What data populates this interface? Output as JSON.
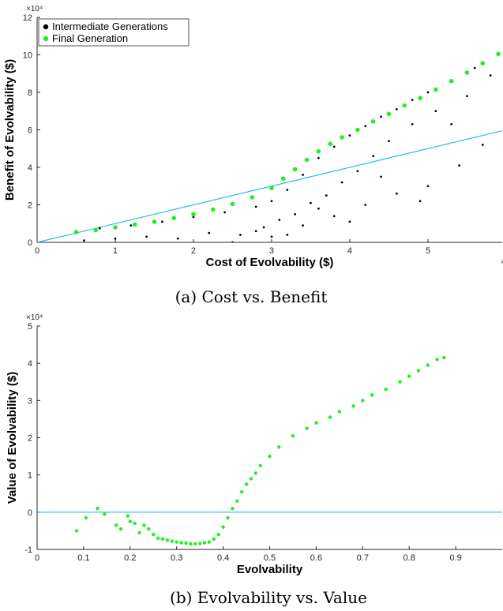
{
  "chart_data": [
    {
      "type": "scatter",
      "caption": "(a) Cost vs. Benefit",
      "xlabel": "Cost of Evolvability ($)",
      "ylabel": "Benefit of Evolvability ($)",
      "x_exponent_label": "×10",
      "y_exponent_label": "×10⁴",
      "xlim": [
        0,
        5.95
      ],
      "ylim": [
        0,
        12
      ],
      "xticks": [
        0,
        1,
        2,
        3,
        4,
        5
      ],
      "yticks": [
        0,
        2,
        4,
        6,
        8,
        10,
        12
      ],
      "legend_position": "top-left",
      "grid": false,
      "colors": {
        "intermediate": "#000000",
        "final": "#22ee22",
        "reference_line": "#22bbee"
      },
      "series": [
        {
          "name": "Intermediate Generations",
          "x": [
            0.5,
            0.8,
            1.2,
            1.6,
            2.0,
            2.4,
            2.8,
            3.0,
            3.2,
            3.4,
            3.6,
            3.8,
            4.0,
            4.2,
            4.4,
            4.6,
            4.8,
            5.0,
            5.3,
            5.6,
            5.9,
            0.6,
            1.0,
            1.4,
            1.8,
            2.2,
            2.6,
            2.9,
            3.1,
            3.3,
            3.5,
            3.7,
            3.9,
            4.1,
            4.3,
            4.5,
            4.8,
            5.1,
            5.5,
            5.8,
            2.5,
            3.0,
            3.4,
            3.8,
            4.2,
            4.6,
            5.0,
            5.4,
            5.7,
            2.8,
            3.2,
            3.6,
            4.0,
            4.4,
            4.9,
            5.3
          ],
          "y": [
            0.6,
            0.75,
            0.9,
            1.1,
            1.35,
            1.6,
            1.9,
            2.2,
            2.8,
            3.6,
            4.5,
            5.1,
            5.7,
            6.2,
            6.7,
            7.1,
            7.6,
            8.0,
            8.6,
            9.3,
            10.0,
            0.1,
            0.2,
            0.3,
            0.2,
            0.5,
            0.4,
            0.8,
            1.2,
            1.5,
            2.1,
            2.5,
            3.2,
            3.8,
            4.6,
            5.4,
            6.3,
            7.0,
            7.8,
            8.9,
            0.0,
            0.3,
            0.9,
            1.4,
            2.0,
            2.6,
            3.0,
            4.1,
            5.2,
            0.6,
            0.4,
            1.8,
            1.1,
            3.5,
            2.2,
            6.3
          ]
        },
        {
          "name": "Final Generation",
          "x": [
            0.5,
            0.75,
            1.0,
            1.25,
            1.5,
            1.75,
            2.0,
            2.25,
            2.5,
            2.75,
            3.0,
            3.15,
            3.3,
            3.45,
            3.6,
            3.75,
            3.9,
            4.1,
            4.3,
            4.5,
            4.7,
            4.9,
            5.1,
            5.3,
            5.5,
            5.7,
            5.9
          ],
          "y": [
            0.55,
            0.65,
            0.8,
            0.95,
            1.1,
            1.3,
            1.5,
            1.75,
            2.05,
            2.4,
            2.9,
            3.4,
            3.9,
            4.4,
            4.85,
            5.25,
            5.6,
            6.0,
            6.45,
            6.85,
            7.3,
            7.7,
            8.15,
            8.6,
            9.05,
            9.55,
            10.05
          ]
        },
        {
          "x": [
            0,
            5.95
          ],
          "y": [
            0,
            5.95
          ]
        }
      ]
    },
    {
      "type": "scatter",
      "caption": "(b) Evolvability vs. Value",
      "xlabel": "Evolvability",
      "ylabel": "Value of Evolvability ($)",
      "y_exponent_label": "×10⁴",
      "xlim": [
        0,
        1.0
      ],
      "ylim": [
        -1,
        5
      ],
      "xticks": [
        0,
        0.1,
        0.2,
        0.3,
        0.4,
        0.5,
        0.6,
        0.7,
        0.8,
        0.9
      ],
      "yticks": [
        -1,
        0,
        1,
        2,
        3,
        4,
        5
      ],
      "grid": false,
      "colors": {
        "points": "#22ee22",
        "reference_line": "#22bbee"
      },
      "series": [
        {
          "x": [
            0.085,
            0.105,
            0.13,
            0.145,
            0.17,
            0.18,
            0.195,
            0.2,
            0.21,
            0.22,
            0.23,
            0.24,
            0.25,
            0.26,
            0.27,
            0.28,
            0.29,
            0.3,
            0.31,
            0.32,
            0.33,
            0.34,
            0.35,
            0.36,
            0.37,
            0.38,
            0.39,
            0.4,
            0.41,
            0.42,
            0.43,
            0.44,
            0.45,
            0.46,
            0.47,
            0.48,
            0.5,
            0.52,
            0.55,
            0.58,
            0.6,
            0.63,
            0.65,
            0.68,
            0.7,
            0.72,
            0.75,
            0.78,
            0.8,
            0.82,
            0.84,
            0.86,
            0.875
          ],
          "y": [
            -0.5,
            -0.15,
            0.1,
            -0.05,
            -0.35,
            -0.45,
            -0.1,
            -0.25,
            -0.3,
            -0.55,
            -0.35,
            -0.45,
            -0.6,
            -0.7,
            -0.72,
            -0.75,
            -0.78,
            -0.8,
            -0.82,
            -0.83,
            -0.85,
            -0.85,
            -0.84,
            -0.82,
            -0.8,
            -0.72,
            -0.6,
            -0.4,
            -0.15,
            0.1,
            0.3,
            0.55,
            0.75,
            0.9,
            1.05,
            1.25,
            1.5,
            1.75,
            2.05,
            2.25,
            2.4,
            2.55,
            2.7,
            2.85,
            3.0,
            3.15,
            3.3,
            3.5,
            3.65,
            3.8,
            3.95,
            4.1,
            4.15
          ]
        },
        {
          "x": [
            0,
            1.0
          ],
          "y": [
            0,
            0
          ]
        }
      ]
    }
  ]
}
